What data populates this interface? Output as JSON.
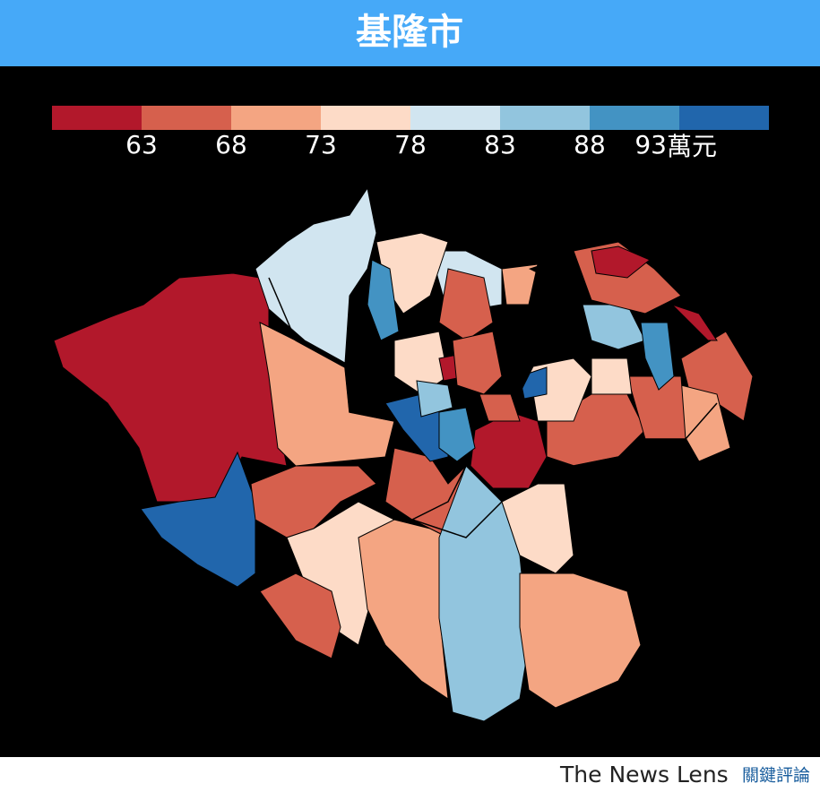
{
  "header": {
    "title": "基隆市"
  },
  "legend": {
    "range": [
      58,
      98
    ],
    "ticks": [
      63,
      68,
      73,
      78,
      83,
      88,
      93
    ],
    "unit": "萬元",
    "colors": [
      "#b2182b",
      "#d6604d",
      "#f4a582",
      "#fddbc7",
      "#d1e5f0",
      "#92c5de",
      "#4393c3",
      "#2166ac"
    ]
  },
  "footer": {
    "brand": "The News Lens",
    "brand_zh": "關鍵評論"
  }
}
